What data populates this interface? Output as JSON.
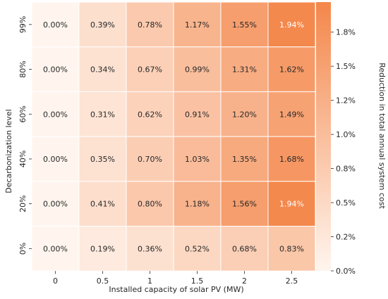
{
  "chart_data": {
    "type": "heatmap",
    "title": "",
    "xlabel": "Installed capacity of solar PV (MW)",
    "ylabel": "Decarbonization level",
    "x_categories": [
      "0",
      "0.5",
      "1",
      "1.5",
      "2",
      "2.5"
    ],
    "y_categories": [
      "99%",
      "80%",
      "60%",
      "40%",
      "20%",
      "0%"
    ],
    "values": [
      [
        0.0,
        0.39,
        0.78,
        1.17,
        1.55,
        1.94
      ],
      [
        0.0,
        0.34,
        0.67,
        0.99,
        1.31,
        1.62
      ],
      [
        0.0,
        0.31,
        0.62,
        0.91,
        1.2,
        1.49
      ],
      [
        0.0,
        0.35,
        0.7,
        1.03,
        1.35,
        1.68
      ],
      [
        0.0,
        0.41,
        0.8,
        1.18,
        1.56,
        1.94
      ],
      [
        0.0,
        0.19,
        0.36,
        0.52,
        0.68,
        0.83
      ]
    ],
    "cell_labels": [
      [
        "0.00%",
        "0.39%",
        "0.78%",
        "1.17%",
        "1.55%",
        "1.94%"
      ],
      [
        "0.00%",
        "0.34%",
        "0.67%",
        "0.99%",
        "1.31%",
        "1.62%"
      ],
      [
        "0.00%",
        "0.31%",
        "0.62%",
        "0.91%",
        "1.20%",
        "1.49%"
      ],
      [
        "0.00%",
        "0.35%",
        "0.70%",
        "1.03%",
        "1.35%",
        "1.68%"
      ],
      [
        "0.00%",
        "0.41%",
        "0.80%",
        "1.18%",
        "1.56%",
        "1.94%"
      ],
      [
        "0.00%",
        "0.19%",
        "0.36%",
        "0.52%",
        "0.68%",
        "0.83%"
      ]
    ],
    "colorbar": {
      "label": "Reduction in total annual system cost",
      "range": [
        0,
        1.97
      ],
      "ticks": [
        0,
        0.25,
        0.5,
        0.75,
        1.0,
        1.25,
        1.5,
        1.75
      ],
      "tick_labels": [
        "0.0%",
        "0.2%",
        "0.5%",
        "0.8%",
        "1.0%",
        "1.2%",
        "1.5%",
        "1.8%"
      ],
      "color_low": "#fff5ee",
      "color_high": "#f4874b"
    },
    "light_text_color": "#ffffff",
    "dark_text_color": "#262626",
    "light_text_threshold": 1.8
  }
}
